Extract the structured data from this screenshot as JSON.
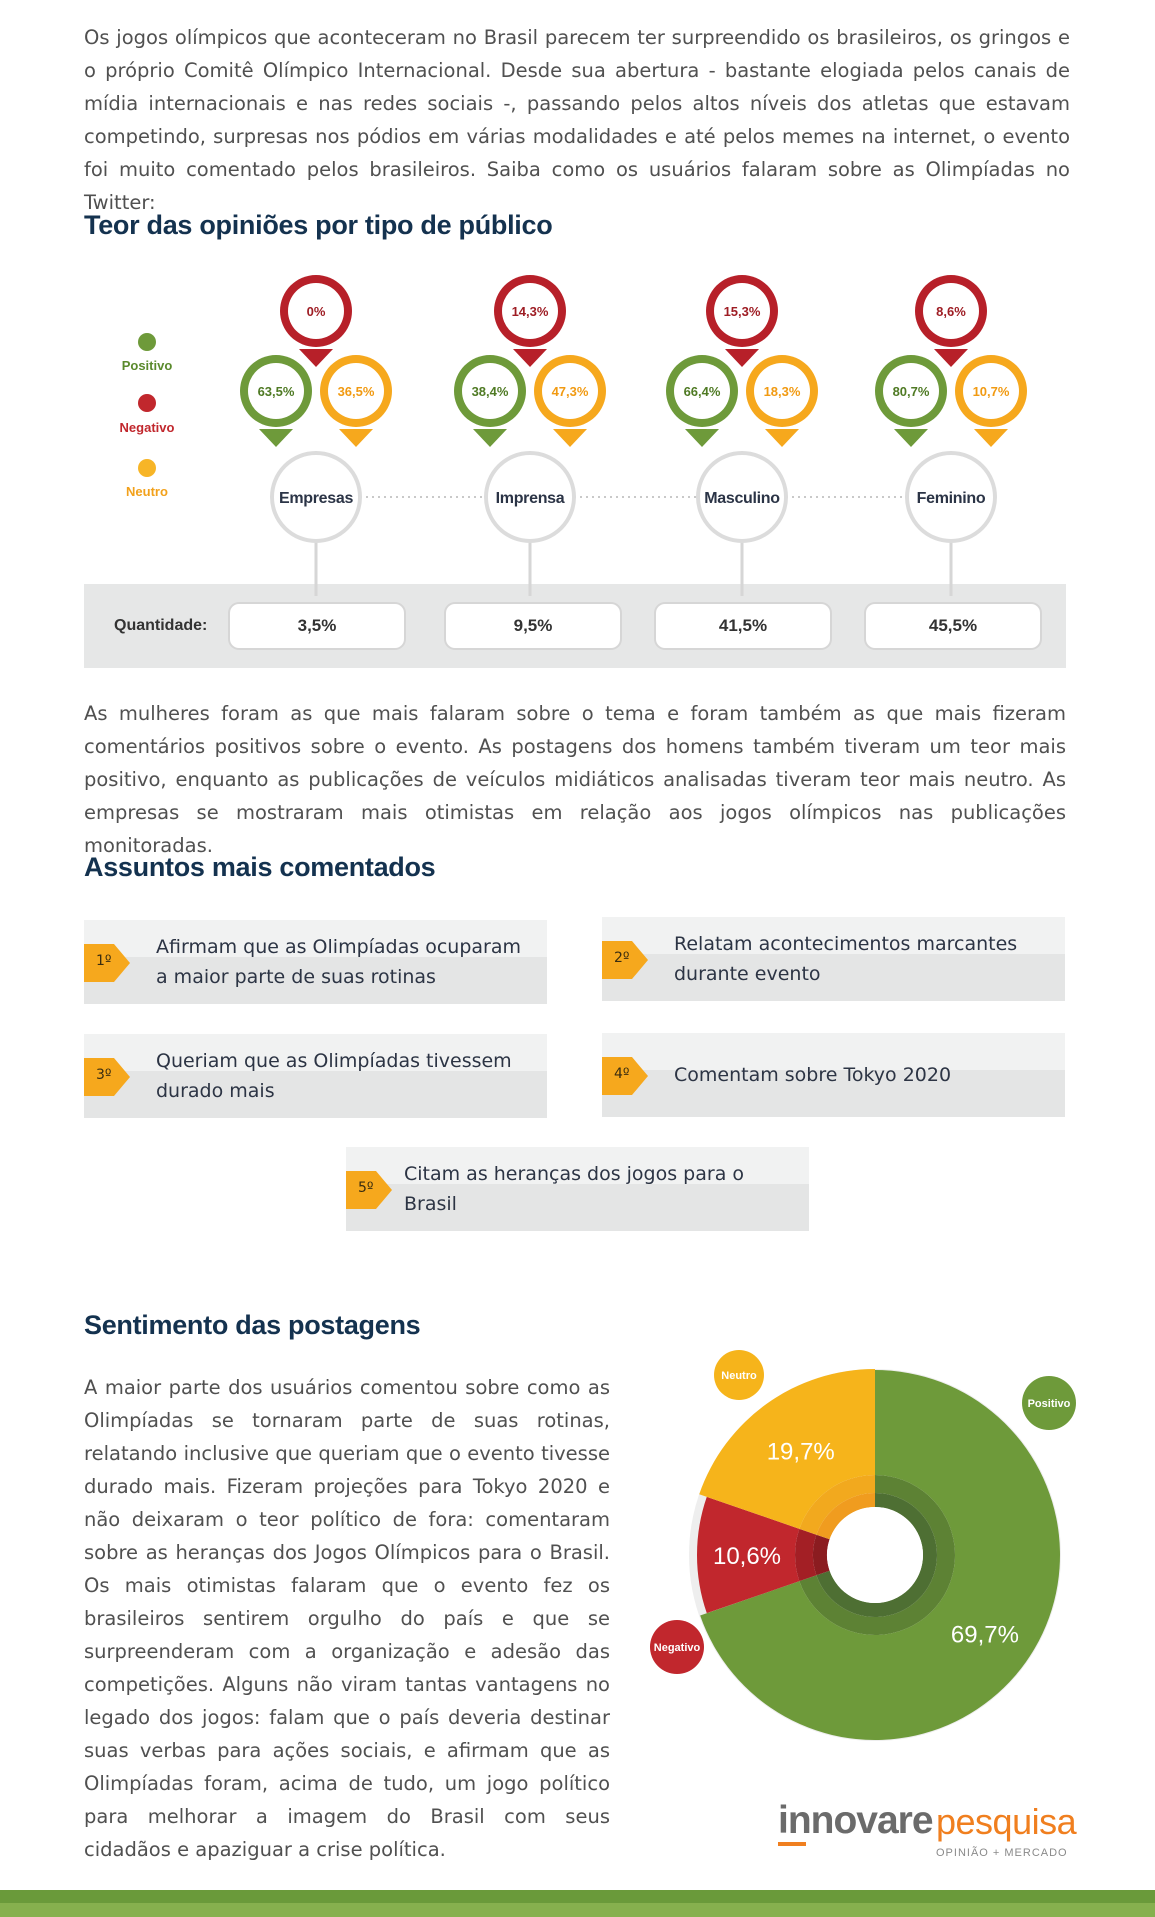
{
  "intro": "Os jogos olímpicos que aconteceram no Brasil parecem ter surpreendido os brasileiros, os gringos e o próprio Comitê Olímpico Internacional. Desde sua abertura - bastante elogiada pelos canais de mídia internacionais e nas redes sociais -, passando pelos altos níveis dos atletas que estavam competindo, surpresas nos pódios em várias modalidades e até pelos memes na internet, o evento foi muito comentado pelos brasileiros. Saiba como os usuários falaram sobre as Olimpíadas no Twitter:",
  "section1": {
    "title": "Teor das opiniões por tipo de público",
    "legend": [
      {
        "label": "Positivo",
        "color": "#6e9a3a"
      },
      {
        "label": "Negativo",
        "color": "#c1272d"
      },
      {
        "label": "Neutro",
        "color": "#f7a81b"
      }
    ],
    "quantity_label": "Quantidade:"
  },
  "chart_data": [
    {
      "type": "table",
      "title": "Teor das opiniões por tipo de público",
      "series_names": [
        "Positivo",
        "Negativo",
        "Neutro"
      ],
      "categories": [
        "Empresas",
        "Imprensa",
        "Masculino",
        "Feminino"
      ],
      "series": [
        {
          "name": "Positivo",
          "values": [
            63.5,
            38.4,
            66.4,
            80.7
          ],
          "labels": [
            "63,5%",
            "38,4%",
            "66,4%",
            "80,7%"
          ]
        },
        {
          "name": "Negativo",
          "values": [
            0,
            14.3,
            15.3,
            8.6
          ],
          "labels": [
            "0%",
            "14,3%",
            "15,3%",
            "8,6%"
          ]
        },
        {
          "name": "Neutro",
          "values": [
            36.5,
            47.3,
            18.3,
            10.7
          ],
          "labels": [
            "36,5%",
            "47,3%",
            "18,3%",
            "10,7%"
          ]
        }
      ],
      "quantity": {
        "values": [
          3.5,
          9.5,
          41.5,
          45.5
        ],
        "labels": [
          "3,5%",
          "9,5%",
          "41,5%",
          "45,5%"
        ]
      }
    },
    {
      "type": "pie",
      "title": "",
      "slices": [
        {
          "name": "Positivo",
          "value": 69.7,
          "label": "69,7%",
          "color": "#6e9a3a"
        },
        {
          "name": "Negativo",
          "value": 10.6,
          "label": "10,6%",
          "color": "#c1272d"
        },
        {
          "name": "Neutro",
          "value": 19.7,
          "label": "19,7%",
          "color": "#f6b41b"
        }
      ]
    }
  ],
  "paragraph2": "As mulheres foram as que mais falaram sobre o tema e foram também as que mais fizeram comentários positivos sobre o evento. As postagens dos homens também tiveram um teor mais positivo, enquanto as publicações de veículos midiáticos analisadas tiveram teor mais neutro.  As empresas se mostraram mais otimistas em relação aos jogos olímpicos nas publicações monitoradas.",
  "section2": {
    "title": "Assuntos mais comentados",
    "topics": [
      {
        "rank": "1º",
        "text": "Afirmam que as Olimpíadas ocuparam a maior parte de suas rotinas"
      },
      {
        "rank": "2º",
        "text": "Relatam acontecimentos marcantes durante evento"
      },
      {
        "rank": "3º",
        "text": "Queriam que as Olimpíadas tivessem durado mais"
      },
      {
        "rank": "4º",
        "text": "Comentam sobre Tokyo 2020"
      },
      {
        "rank": "5º",
        "text": "Citam as heranças dos jogos para o Brasil"
      }
    ]
  },
  "section3": {
    "title": "Sentimento das postagens",
    "body": "A maior parte dos usuários comentou sobre como as Olimpíadas se tornaram parte de suas rotinas, relatando inclusive que queriam que o evento tivesse durado mais. Fizeram projeções para Tokyo 2020 e não deixaram o teor político de fora: comentaram sobre as heranças dos Jogos Olímpicos para o Brasil. Os mais otimistas falaram que o evento fez os brasileiros sentirem orgulho do país e que se surpreenderam com a organização e adesão das competições. Alguns não viram tantas vantagens no legado dos jogos: falam que o país deveria destinar suas verbas para ações sociais, e afirmam que as Olimpíadas foram, acima de tudo, um jogo político para melhorar a imagem do Brasil com seus cidadãos e apaziguar a crise política.",
    "bubbles": [
      "Neutro",
      "Positivo",
      "Negativo"
    ]
  },
  "logo": {
    "part1": "innovare",
    "part2": "pesquisa",
    "tagline": "OPINIÃO + MERCADO"
  },
  "colors": {
    "positive": "#6e9a3a",
    "negative": "#c1272d",
    "neutral": "#f7a81b",
    "title": "#14324f",
    "footer": "#6a9a3a"
  }
}
